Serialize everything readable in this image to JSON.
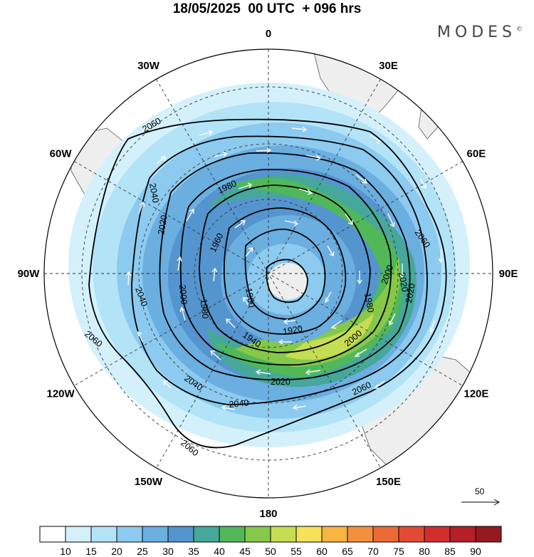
{
  "header": {
    "title": "18/05/2025  00 UTC  + 096 hrs",
    "brand": "MODES",
    "brand_mark": "©"
  },
  "map": {
    "projection": "south-polar-stereographic",
    "longitude_labels": [
      {
        "text": "0",
        "lon": 0
      },
      {
        "text": "30E",
        "lon": 30
      },
      {
        "text": "60E",
        "lon": 60
      },
      {
        "text": "90E",
        "lon": 90
      },
      {
        "text": "120E",
        "lon": 120
      },
      {
        "text": "150E",
        "lon": 150
      },
      {
        "text": "180",
        "lon": 180
      },
      {
        "text": "150W",
        "lon": -150
      },
      {
        "text": "120W",
        "lon": -120
      },
      {
        "text": "90W",
        "lon": -90
      },
      {
        "text": "60W",
        "lon": -60
      },
      {
        "text": "30W",
        "lon": -30
      }
    ],
    "contour_labels": [
      "2060",
      "2060",
      "2060",
      "2060",
      "2060",
      "2040",
      "2040",
      "2040",
      "2040",
      "2020",
      "2020",
      "2020",
      "2000",
      "2000",
      "1980",
      "1980",
      "1960",
      "1960",
      "1940",
      "1920",
      "1980",
      "2000",
      "2020"
    ],
    "vector_reference": {
      "label": "50"
    }
  },
  "colorbar": {
    "colors": [
      "#ffffff",
      "#d4f1fb",
      "#b3e3f7",
      "#8ccaef",
      "#6baee0",
      "#5595cf",
      "#45a89a",
      "#51b85a",
      "#86c84a",
      "#c5dd52",
      "#f7e15a",
      "#f6b443",
      "#f39040",
      "#ee6a33",
      "#e34a33",
      "#d22e2e",
      "#b61f28",
      "#951a1f"
    ],
    "ticks": [
      "10",
      "15",
      "20",
      "25",
      "30",
      "35",
      "40",
      "45",
      "50",
      "55",
      "60",
      "65",
      "70",
      "75",
      "80",
      "85",
      "90"
    ]
  }
}
